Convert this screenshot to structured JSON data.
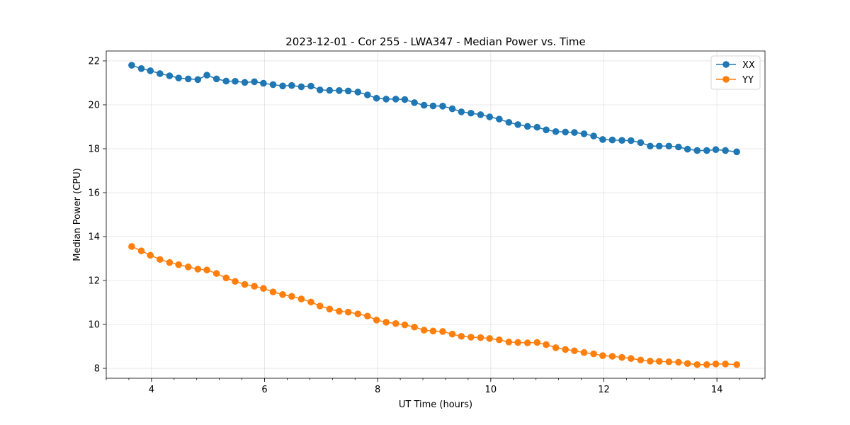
{
  "chart_data": {
    "type": "line",
    "title": "2023-12-01 - Cor 255 - LWA347 - Median Power vs. Time",
    "xlabel": "UT Time (hours)",
    "ylabel": "Median Power (CPU)",
    "xlim": [
      3.2,
      14.85
    ],
    "ylim": [
      7.55,
      22.45
    ],
    "xticks": [
      4,
      6,
      8,
      10,
      12,
      14
    ],
    "yticks": [
      8,
      10,
      12,
      14,
      16,
      18,
      20,
      22
    ],
    "x_minor_step": 0.4,
    "grid": true,
    "legend_position": "top-right",
    "x": [
      3.65,
      3.82,
      3.98,
      4.15,
      4.32,
      4.48,
      4.65,
      4.82,
      4.98,
      5.15,
      5.32,
      5.48,
      5.65,
      5.82,
      5.98,
      6.15,
      6.32,
      6.48,
      6.65,
      6.82,
      6.98,
      7.15,
      7.32,
      7.48,
      7.65,
      7.82,
      7.98,
      8.15,
      8.32,
      8.48,
      8.65,
      8.82,
      8.98,
      9.15,
      9.32,
      9.48,
      9.65,
      9.82,
      9.98,
      10.15,
      10.32,
      10.48,
      10.65,
      10.82,
      10.98,
      11.15,
      11.32,
      11.48,
      11.65,
      11.82,
      11.98,
      12.15,
      12.32,
      12.48,
      12.65,
      12.82,
      12.98,
      13.15,
      13.32,
      13.48,
      13.65,
      13.82,
      13.98,
      14.15,
      14.35
    ],
    "series": [
      {
        "name": "XX",
        "color": "#1f77b4",
        "values": [
          21.8,
          21.65,
          21.55,
          21.42,
          21.32,
          21.22,
          21.18,
          21.15,
          21.35,
          21.18,
          21.08,
          21.07,
          21.02,
          21.05,
          20.98,
          20.92,
          20.86,
          20.88,
          20.82,
          20.85,
          20.68,
          20.66,
          20.65,
          20.63,
          20.58,
          20.45,
          20.3,
          20.26,
          20.26,
          20.24,
          20.1,
          19.98,
          19.95,
          19.94,
          19.82,
          19.68,
          19.62,
          19.55,
          19.45,
          19.35,
          19.2,
          19.1,
          19.02,
          18.98,
          18.86,
          18.78,
          18.76,
          18.74,
          18.68,
          18.58,
          18.42,
          18.4,
          18.38,
          18.37,
          18.28,
          18.12,
          18.12,
          18.12,
          18.08,
          17.98,
          17.92,
          17.92,
          17.96,
          17.92,
          17.86
        ]
      },
      {
        "name": "YY",
        "color": "#ff7f0e",
        "values": [
          13.55,
          13.35,
          13.15,
          12.96,
          12.82,
          12.72,
          12.62,
          12.52,
          12.48,
          12.32,
          12.12,
          11.96,
          11.82,
          11.74,
          11.64,
          11.48,
          11.36,
          11.28,
          11.16,
          11.02,
          10.84,
          10.7,
          10.6,
          10.56,
          10.48,
          10.38,
          10.2,
          10.1,
          10.04,
          9.98,
          9.88,
          9.74,
          9.7,
          9.68,
          9.56,
          9.46,
          9.42,
          9.4,
          9.36,
          9.3,
          9.2,
          9.18,
          9.16,
          9.18,
          9.08,
          8.94,
          8.86,
          8.8,
          8.72,
          8.66,
          8.58,
          8.55,
          8.5,
          8.45,
          8.38,
          8.33,
          8.32,
          8.3,
          8.28,
          8.22,
          8.17,
          8.17,
          8.2,
          8.2,
          8.17
        ]
      }
    ]
  }
}
